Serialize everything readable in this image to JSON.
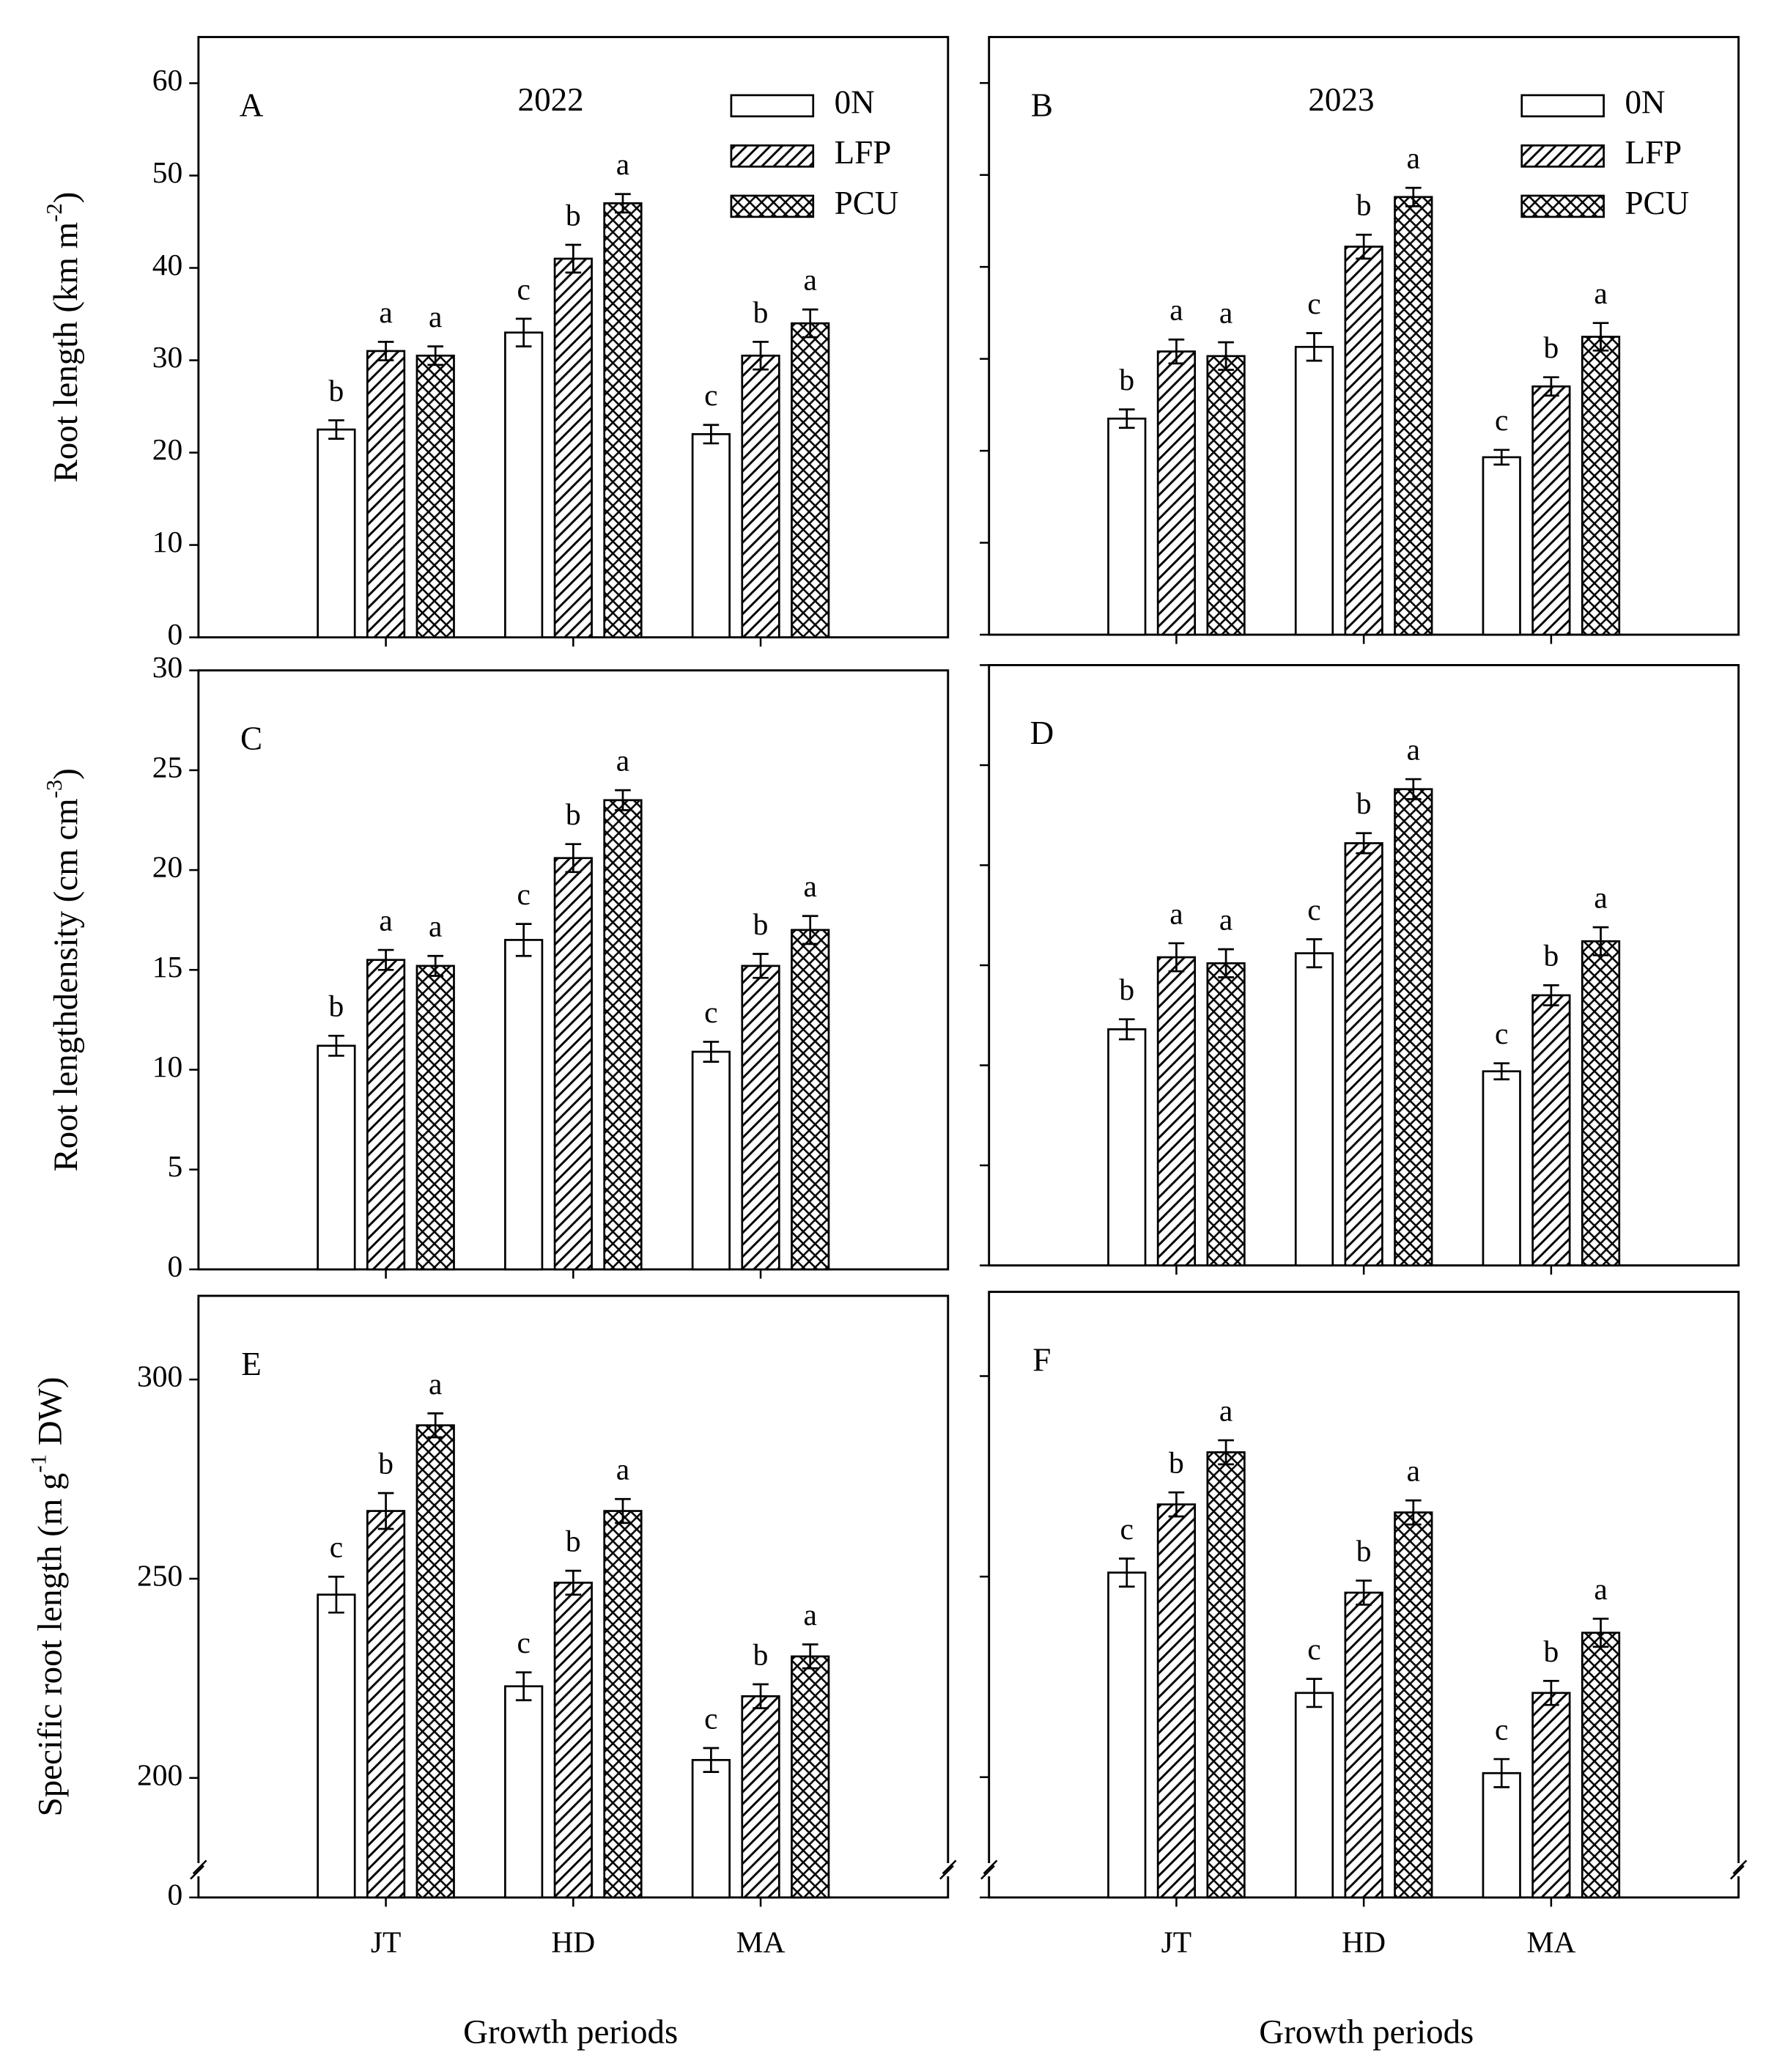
{
  "chart_data": [
    {
      "type": "bar",
      "panel": "A",
      "title": "2022",
      "legend": "upper right",
      "ylabel": {
        "text": "Root length (km m",
        "sup": "-2",
        "end": ")"
      },
      "ylim": [
        0,
        65
      ],
      "yticks": [
        0,
        10,
        20,
        30,
        40,
        50,
        60
      ],
      "series": [
        {
          "name": "0N",
          "pattern": "none",
          "color": "#000000",
          "values": [
            22.5,
            33,
            22
          ],
          "errors": [
            1,
            1.5,
            1
          ],
          "letters": [
            "b",
            "c",
            "c"
          ]
        },
        {
          "name": "LFP",
          "pattern": "hatch",
          "color": "#000000",
          "values": [
            31,
            41,
            30.5
          ],
          "errors": [
            1,
            1.5,
            1.5
          ],
          "letters": [
            "a",
            "b",
            "b"
          ]
        },
        {
          "name": "PCU",
          "pattern": "crosshatch",
          "color": "#000000",
          "values": [
            30.5,
            47,
            34
          ],
          "errors": [
            1,
            1,
            1.5
          ],
          "letters": [
            "a",
            "a",
            "a"
          ]
        }
      ]
    },
    {
      "type": "bar",
      "panel": "B",
      "title": "2023",
      "legend": "upper right",
      "ylim": [
        0,
        65
      ],
      "series": [
        {
          "name": "0N",
          "pattern": "none",
          "color": "#000000",
          "values": [
            23.5,
            31.3,
            19.3
          ],
          "errors": [
            1,
            1.5,
            0.8
          ],
          "letters": [
            "b",
            "c",
            "c"
          ]
        },
        {
          "name": "LFP",
          "pattern": "hatch",
          "color": "#000000",
          "values": [
            30.8,
            42.2,
            27
          ],
          "errors": [
            1.3,
            1.3,
            1
          ],
          "letters": [
            "a",
            "b",
            "b"
          ]
        },
        {
          "name": "PCU",
          "pattern": "crosshatch",
          "color": "#000000",
          "values": [
            30.3,
            47.6,
            32.4
          ],
          "errors": [
            1.5,
            1,
            1.5
          ],
          "letters": [
            "a",
            "a",
            "a"
          ]
        }
      ]
    },
    {
      "type": "bar",
      "panel": "C",
      "ylabel": {
        "text": "Root lengthdensity (cm cm",
        "sup": "-3",
        "end": ")"
      },
      "ylim": [
        0,
        30
      ],
      "yticks": [
        0,
        5,
        10,
        15,
        20,
        25,
        30
      ],
      "series": [
        {
          "pattern": "none",
          "color": "#000000",
          "values": [
            11.2,
            16.5,
            10.9
          ],
          "errors": [
            0.5,
            0.8,
            0.5
          ],
          "letters": [
            "b",
            "c",
            "c"
          ]
        },
        {
          "pattern": "hatch",
          "color": "#000000",
          "values": [
            15.5,
            20.6,
            15.2
          ],
          "errors": [
            0.5,
            0.7,
            0.6
          ],
          "letters": [
            "a",
            "b",
            "b"
          ]
        },
        {
          "pattern": "crosshatch",
          "color": "#000000",
          "values": [
            15.2,
            23.5,
            17
          ],
          "errors": [
            0.5,
            0.5,
            0.7
          ],
          "letters": [
            "a",
            "a",
            "a"
          ]
        }
      ]
    },
    {
      "type": "bar",
      "panel": "D",
      "ylim": [
        0,
        30
      ],
      "series": [
        {
          "pattern": "none",
          "color": "#000000",
          "values": [
            11.8,
            15.6,
            9.7
          ],
          "errors": [
            0.5,
            0.7,
            0.4
          ],
          "letters": [
            "b",
            "c",
            "c"
          ]
        },
        {
          "pattern": "hatch",
          "color": "#000000",
          "values": [
            15.4,
            21.1,
            13.5
          ],
          "errors": [
            0.7,
            0.5,
            0.5
          ],
          "letters": [
            "a",
            "b",
            "b"
          ]
        },
        {
          "pattern": "crosshatch",
          "color": "#000000",
          "values": [
            15.1,
            23.8,
            16.2
          ],
          "errors": [
            0.7,
            0.5,
            0.7
          ],
          "letters": [
            "a",
            "a",
            "a"
          ]
        }
      ]
    },
    {
      "type": "bar",
      "panel": "E",
      "xlabel": "Growth periods",
      "categories": [
        "JT",
        "HD",
        "MA"
      ],
      "ylabel": {
        "text": "Specific root length (m g",
        "sup": "-1",
        "end": " DW)"
      },
      "ylim": [
        0,
        321
      ],
      "y_break": [
        0,
        170
      ],
      "yticks": [
        0,
        200,
        250,
        300
      ],
      "series": [
        {
          "pattern": "none",
          "color": "#000000",
          "values": [
            246,
            223,
            204.5
          ],
          "errors": [
            4.5,
            3.5,
            3
          ],
          "letters": [
            "c",
            "c",
            "c"
          ]
        },
        {
          "pattern": "hatch",
          "color": "#000000",
          "values": [
            267,
            249,
            220.5
          ],
          "errors": [
            4.5,
            3,
            3
          ],
          "letters": [
            "b",
            "b",
            "b"
          ]
        },
        {
          "pattern": "crosshatch",
          "color": "#000000",
          "values": [
            288.5,
            267,
            230.5
          ],
          "errors": [
            3,
            3,
            3
          ],
          "letters": [
            "a",
            "a",
            "a"
          ]
        }
      ]
    },
    {
      "type": "bar",
      "panel": "F",
      "xlabel": "Growth periods",
      "categories": [
        "JT",
        "HD",
        "MA"
      ],
      "ylim": [
        0,
        321
      ],
      "y_break": [
        0,
        170
      ],
      "series": [
        {
          "pattern": "none",
          "color": "#000000",
          "values": [
            251,
            221,
            201
          ],
          "errors": [
            3.5,
            3.5,
            3.5
          ],
          "letters": [
            "c",
            "c",
            "c"
          ]
        },
        {
          "pattern": "hatch",
          "color": "#000000",
          "values": [
            268,
            246,
            221
          ],
          "errors": [
            3,
            3,
            3
          ],
          "letters": [
            "b",
            "b",
            "b"
          ]
        },
        {
          "pattern": "crosshatch",
          "color": "#000000",
          "values": [
            281,
            266,
            236
          ],
          "errors": [
            3,
            3,
            3.5
          ],
          "letters": [
            "a",
            "a",
            "a"
          ]
        }
      ]
    }
  ]
}
